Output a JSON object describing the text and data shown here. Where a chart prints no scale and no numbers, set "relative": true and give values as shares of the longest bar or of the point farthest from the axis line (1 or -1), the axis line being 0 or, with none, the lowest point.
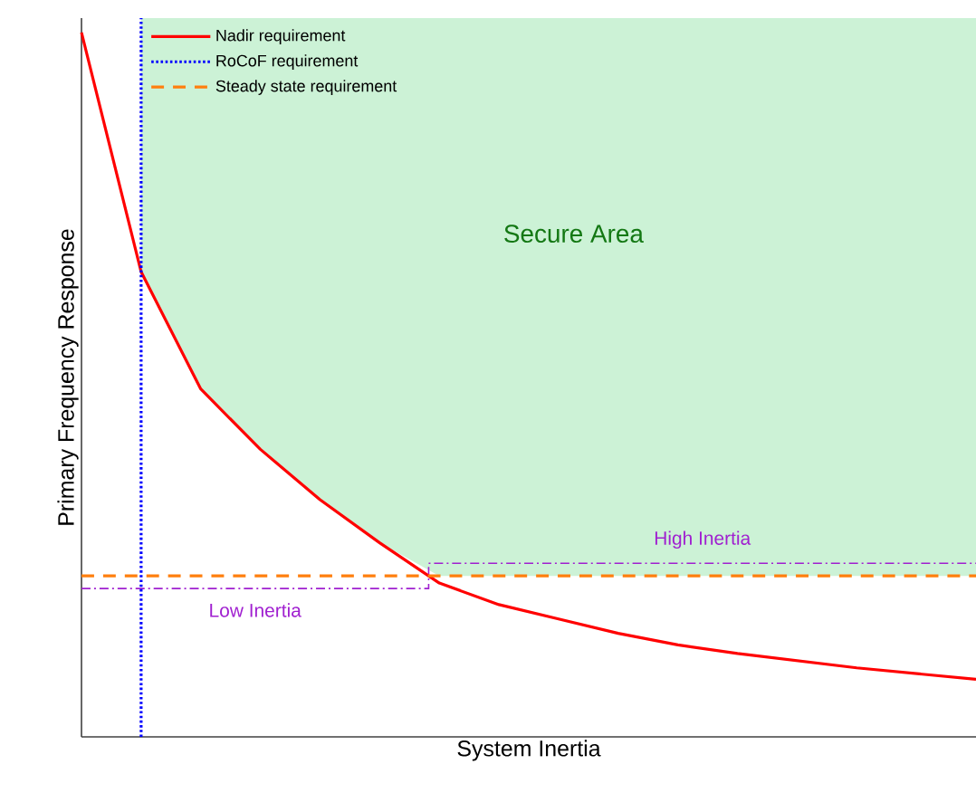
{
  "chart_data": {
    "type": "line",
    "relative": true,
    "xlabel": "System Inertia",
    "ylabel": "Primary Frequency Response",
    "legend": "top left",
    "marker": "none",
    "categories": [
      null,
      null,
      null,
      null,
      null,
      null,
      null,
      null,
      null,
      null,
      null,
      null,
      null,
      null,
      null,
      null
    ],
    "series": [
      {
        "name": "Nadir requirement",
        "color": "#ff0000",
        "line_style": "solid",
        "values": [
          0.98,
          0.647,
          0.484,
          0.4,
          0.33,
          0.27,
          0.214,
          0.184,
          0.164,
          0.144,
          0.128,
          0.116,
          0.106,
          0.096,
          0.088,
          0.08
        ]
      },
      {
        "type": "area",
        "color": "#ccf2d6",
        "values": [
          null,
          1,
          1,
          1,
          1,
          1,
          1,
          1,
          1,
          1,
          1,
          1,
          1,
          1,
          1,
          1
        ]
      }
    ],
    "ref_lines": [
      {
        "axis": "y",
        "value": 0.224,
        "label": "Steady state requirement",
        "color": "#ff7f0e",
        "line_style": "dashed"
      }
    ],
    "annotations": [
      "Secure Area",
      "RoCoF requirement",
      "Low Inertia",
      "High Inertia"
    ]
  }
}
